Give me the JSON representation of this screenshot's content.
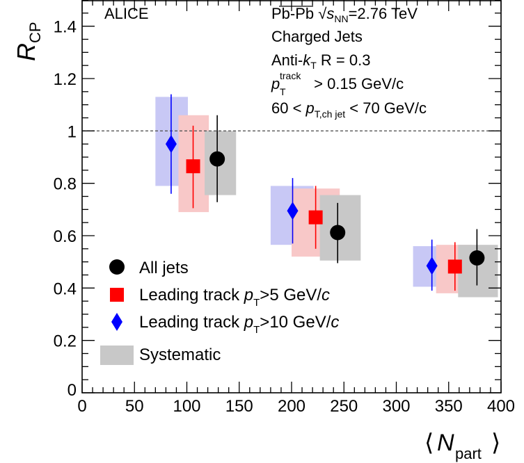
{
  "chart_data": {
    "type": "scatter",
    "title": "",
    "xlabel": "N",
    "xlabel_sub": "part",
    "ylabel": "R",
    "ylabel_sub": "CP",
    "xlim": [
      0,
      400
    ],
    "ylim": [
      0,
      1.5
    ],
    "x_major_ticks": [
      0,
      50,
      100,
      150,
      200,
      250,
      300,
      350,
      400
    ],
    "y_major_ticks": [
      0,
      0.2,
      0.4,
      0.6,
      0.8,
      1,
      1.2,
      1.4
    ],
    "x_tick_labels": [
      "0",
      "50",
      "100",
      "150",
      "200",
      "250",
      "300",
      "350",
      "400"
    ],
    "y_tick_labels": [
      "0",
      "0.2",
      "0.4",
      "0.6",
      "0.8",
      "1",
      "1.2",
      "1.4"
    ],
    "reference_line": 1.0,
    "grid": false,
    "legend_position": "bottom-left",
    "series": [
      {
        "key": "leading10",
        "name": "Leading track p>10 GeV/c",
        "marker": "diamond",
        "color": "#0000ff",
        "syst_color": "#c8c8f5",
        "points": [
          {
            "x": 85,
            "y": 0.95,
            "stat": [
              0.76,
              1.14
            ],
            "syst": [
              0.79,
              1.13
            ],
            "syst_x": [
              70,
              101
            ]
          },
          {
            "x": 201,
            "y": 0.695,
            "stat": [
              0.57,
              0.82
            ],
            "syst": [
              0.565,
              0.79
            ],
            "syst_x": [
              180,
              221
            ]
          },
          {
            "x": 334,
            "y": 0.485,
            "stat": [
              0.39,
              0.585
            ],
            "syst": [
              0.405,
              0.56
            ],
            "syst_x": [
              316,
              351
            ]
          }
        ]
      },
      {
        "key": "leading5",
        "name": "Leading track p>5 GeV/c",
        "marker": "square",
        "color": "#ff0000",
        "syst_color": "#f8c8c8",
        "points": [
          {
            "x": 106,
            "y": 0.865,
            "stat": [
              0.705,
              1.02
            ],
            "syst": [
              0.69,
              1.06
            ],
            "syst_x": [
              92,
              121
            ]
          },
          {
            "x": 223,
            "y": 0.67,
            "stat": [
              0.55,
              0.79
            ],
            "syst": [
              0.52,
              0.78
            ],
            "syst_x": [
              200,
              246
            ]
          },
          {
            "x": 356,
            "y": 0.482,
            "stat": [
              0.39,
              0.575
            ],
            "syst": [
              0.38,
              0.565
            ],
            "syst_x": [
              338,
              372
            ]
          }
        ]
      },
      {
        "key": "all",
        "name": "All jets",
        "marker": "circle",
        "color": "#000000",
        "syst_color": "#c8c8c8",
        "points": [
          {
            "x": 129,
            "y": 0.893,
            "stat": [
              0.728,
              1.06
            ],
            "syst": [
              0.755,
              1.0
            ],
            "syst_x": [
              117,
              147
            ]
          },
          {
            "x": 244,
            "y": 0.612,
            "stat": [
              0.495,
              0.725
            ],
            "syst": [
              0.505,
              0.755
            ],
            "syst_x": [
              227,
              266
            ]
          },
          {
            "x": 377,
            "y": 0.515,
            "stat": [
              0.41,
              0.625
            ],
            "syst": [
              0.365,
              0.565
            ],
            "syst_x": [
              359,
              397
            ]
          }
        ]
      }
    ],
    "legend": [
      {
        "marker": "circle",
        "color": "#000000",
        "label": "All jets"
      },
      {
        "marker": "square",
        "color": "#ff0000",
        "label": "Leading track p>5 GeV/c"
      },
      {
        "marker": "diamond",
        "color": "#0000ff",
        "label": "Leading track p>10 GeV/c"
      },
      {
        "marker": "box",
        "color": "#c8c8c8",
        "label": "Systematic"
      }
    ],
    "annotations": {
      "experiment": "ALICE",
      "collision_pre": "Pb-Pb ",
      "collision_s": "s",
      "collision_sub": "NN",
      "collision_post": "=2.76 TeV",
      "jets": "Charged Jets",
      "algo_pre": "Anti-",
      "algo_k": "k",
      "algo_sub": "T",
      "algo_post": " R = 0.3",
      "track_p": "p",
      "track_sup": "track",
      "track_sub": "T",
      "track_post": " > 0.15 GeV/c",
      "bin_pre": "60 < ",
      "bin_p": "p",
      "bin_sub": "T,ch jet",
      "bin_post": " < 70 GeV/c",
      "bin_color": "#00007f"
    },
    "legend_text": {
      "lt_pre": "Leading track ",
      "lt_p": "p",
      "lt_sub": "T",
      "lt5_post": ">5 GeV/",
      "lt10_post": ">10 GeV/",
      "c": "c",
      "all": "All jets",
      "syst": "Systematic"
    }
  }
}
